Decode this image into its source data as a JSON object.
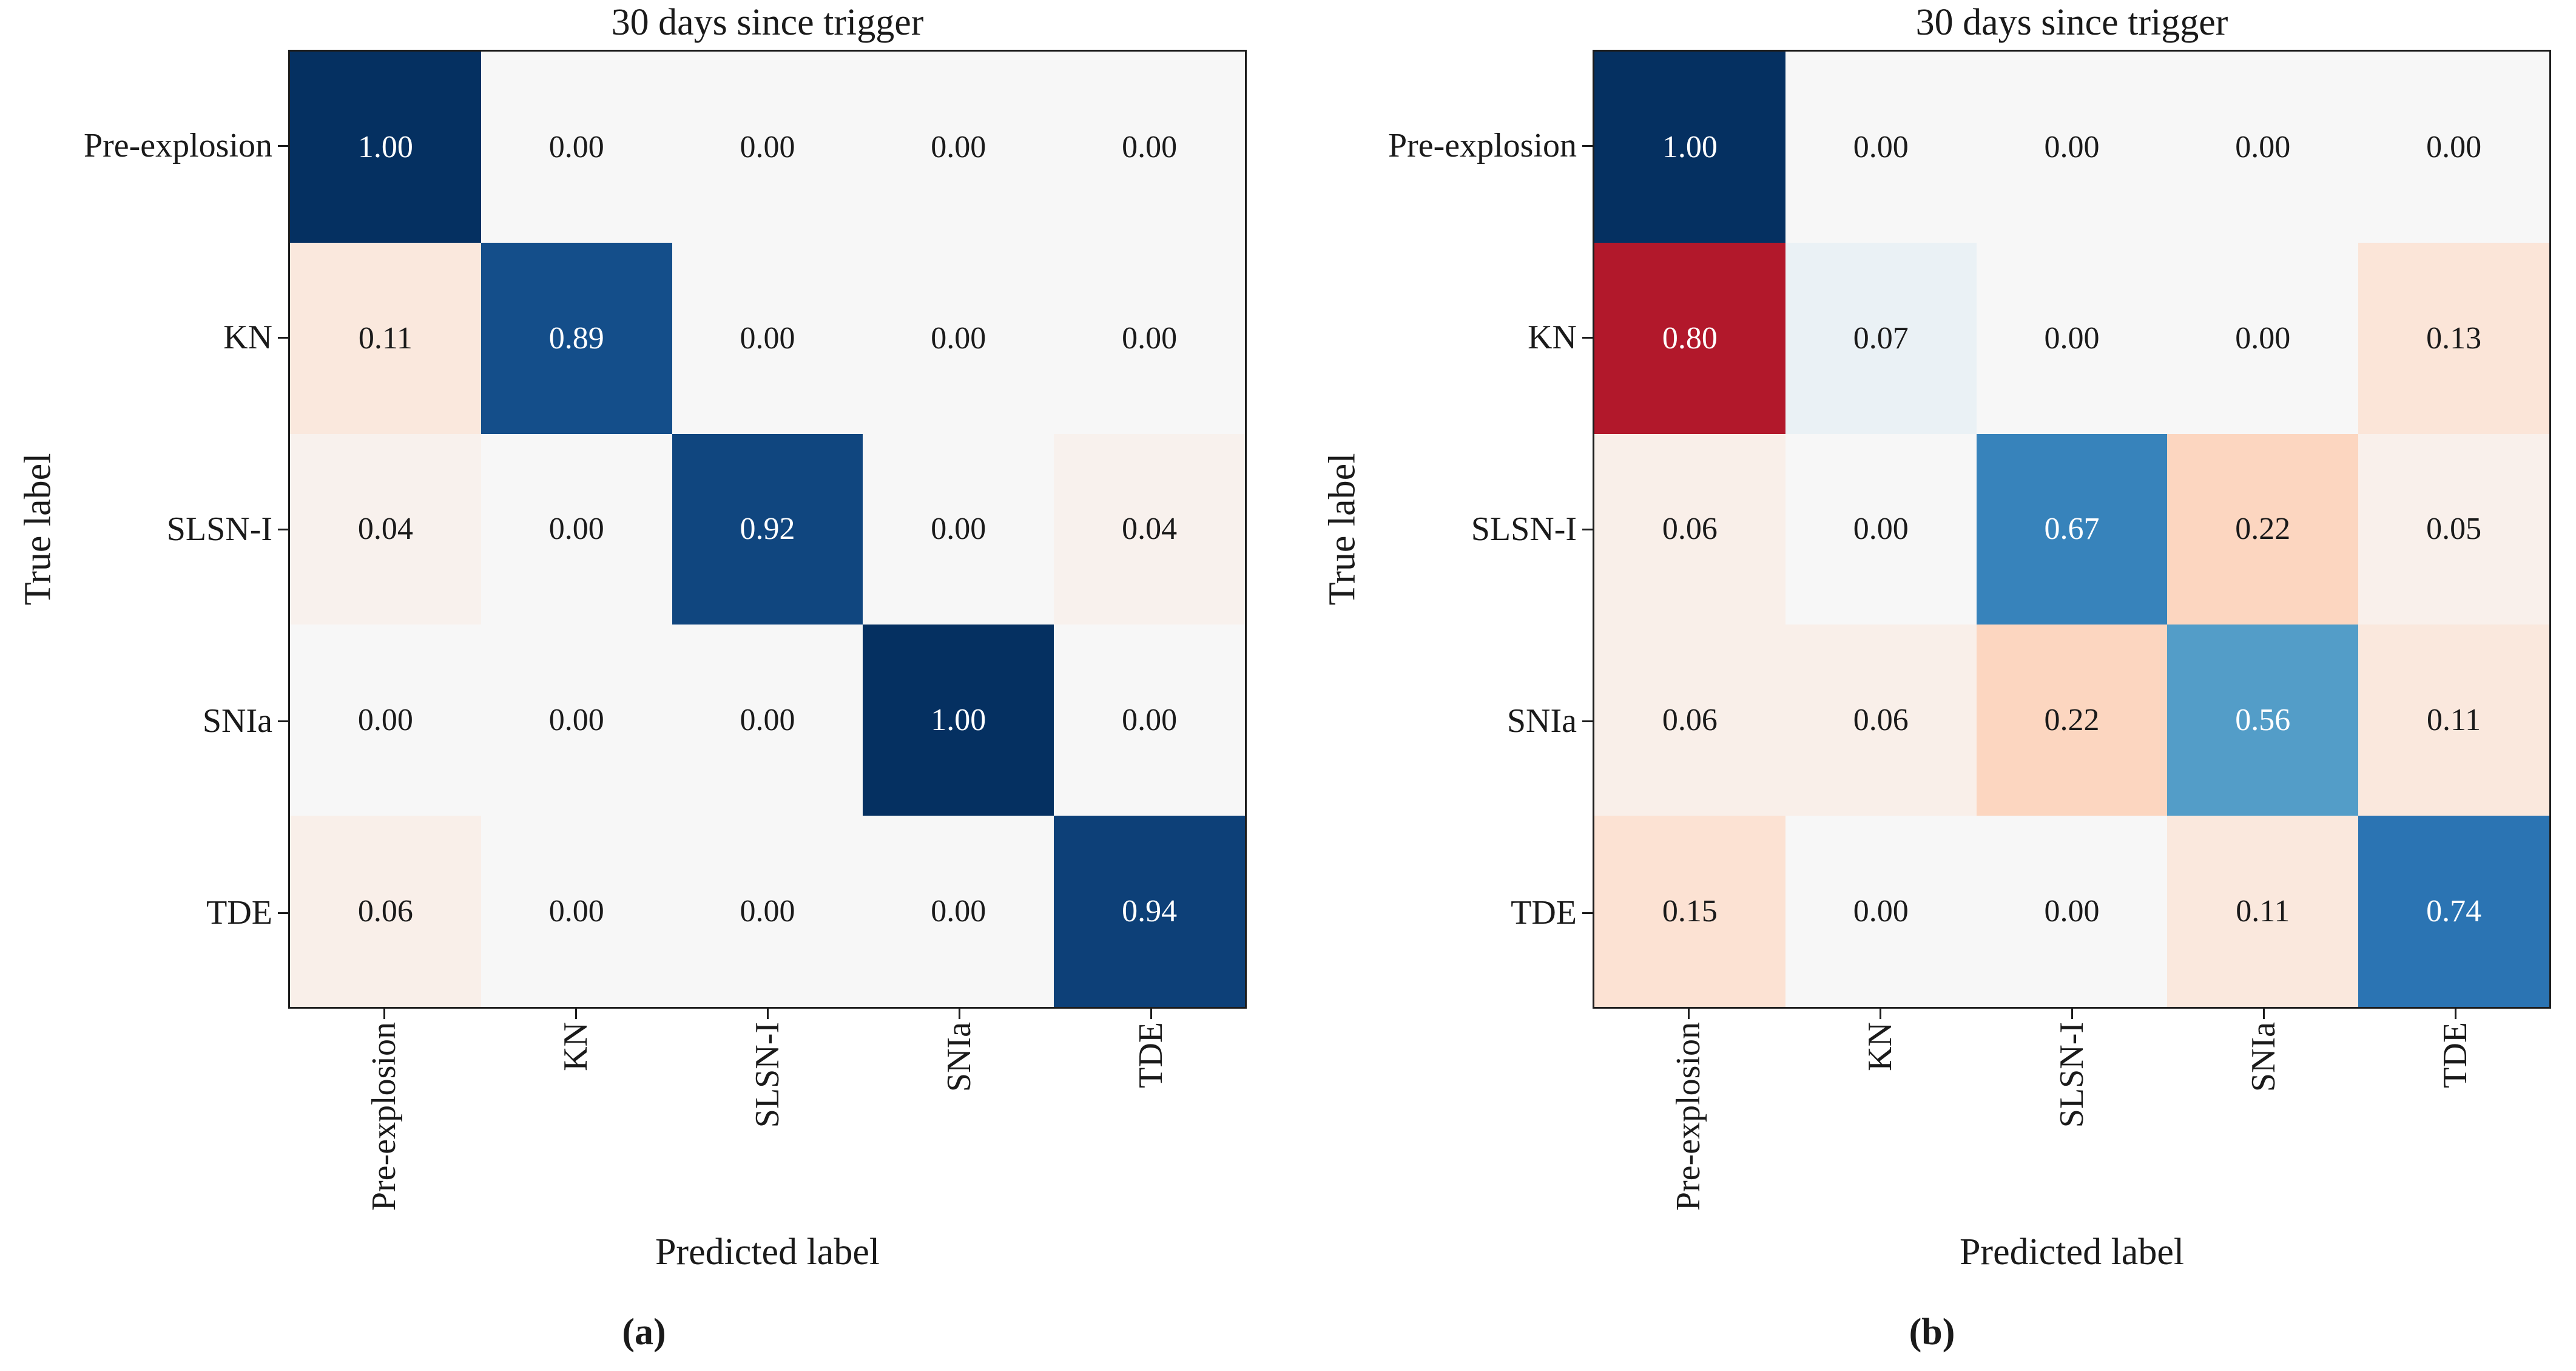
{
  "colors": {
    "background": "#ffffff",
    "axis_text": "#1a1a1a",
    "spine": "#1c1c1c",
    "cell_text_dark": "#1a1a1a",
    "cell_text_light": "#ffffff",
    "rdbu_stops": [
      "#67001f",
      "#b2182b",
      "#d6604d",
      "#f4a582",
      "#fddbc7",
      "#f7f7f7",
      "#d1e5f0",
      "#92c5de",
      "#4393c3",
      "#2166ac",
      "#053061"
    ]
  },
  "chart_data": [
    {
      "type": "heatmap",
      "title": "30 days since trigger",
      "xlabel": "Predicted label",
      "ylabel": "True label",
      "caption": "(a)",
      "categories": [
        "Pre-explosion",
        "KN",
        "SLSN-I",
        "SNIa",
        "TDE"
      ],
      "row_labels": [
        "Pre-explosion",
        "KN",
        "SLSN-I",
        "SNIa",
        "TDE"
      ],
      "col_labels": [
        "Pre-explosion",
        "KN",
        "SLSN-I",
        "SNIa",
        "TDE"
      ],
      "matrix": [
        [
          1.0,
          0.0,
          0.0,
          0.0,
          0.0
        ],
        [
          0.11,
          0.89,
          0.0,
          0.0,
          0.0
        ],
        [
          0.04,
          0.0,
          0.92,
          0.0,
          0.04
        ],
        [
          0.0,
          0.0,
          0.0,
          1.0,
          0.0
        ],
        [
          0.06,
          0.0,
          0.0,
          0.0,
          0.94
        ]
      ],
      "value_decimals": 2,
      "colormap": "RdBu diverging: diagonal mapped to blues (+v), off-diagonal to reds (-v)",
      "vmin": -1,
      "vmax": 1,
      "grid": false,
      "legend": "none",
      "x_tick_rotation_degrees": 90
    },
    {
      "type": "heatmap",
      "title": "30 days since trigger",
      "xlabel": "Predicted label",
      "ylabel": "True label",
      "caption": "(b)",
      "categories": [
        "Pre-explosion",
        "KN",
        "SLSN-I",
        "SNIa",
        "TDE"
      ],
      "row_labels": [
        "Pre-explosion",
        "KN",
        "SLSN-I",
        "SNIa",
        "TDE"
      ],
      "col_labels": [
        "Pre-explosion",
        "KN",
        "SLSN-I",
        "SNIa",
        "TDE"
      ],
      "matrix": [
        [
          1.0,
          0.0,
          0.0,
          0.0,
          0.0
        ],
        [
          0.8,
          0.07,
          0.0,
          0.0,
          0.13
        ],
        [
          0.06,
          0.0,
          0.67,
          0.22,
          0.05
        ],
        [
          0.06,
          0.06,
          0.22,
          0.56,
          0.11
        ],
        [
          0.15,
          0.0,
          0.0,
          0.11,
          0.74
        ]
      ],
      "value_decimals": 2,
      "colormap": "RdBu diverging: diagonal mapped to blues (+v), off-diagonal to reds (-v)",
      "vmin": -1,
      "vmax": 1,
      "grid": false,
      "legend": "none",
      "x_tick_rotation_degrees": 90
    }
  ]
}
